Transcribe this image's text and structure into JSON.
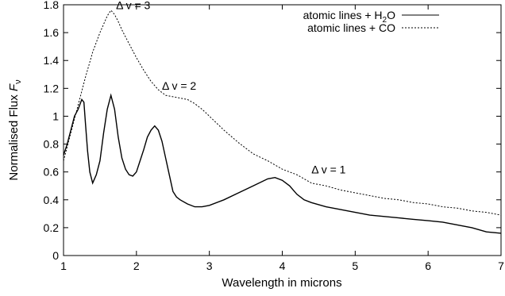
{
  "chart_data": {
    "type": "line",
    "title": "",
    "xlabel": "Wavelength in microns",
    "ylabel": "Normalised Flux",
    "ylabel_symbol": "F",
    "ylabel_subscript": "ν",
    "xlim": [
      1,
      7
    ],
    "ylim": [
      0,
      1.8
    ],
    "xticks": [
      "1",
      "2",
      "3",
      "4",
      "5",
      "6",
      "7"
    ],
    "yticks": [
      "0",
      "0.2",
      "0.4",
      "0.6",
      "0.8",
      "1",
      "1.2",
      "1.4",
      "1.6",
      "1.8"
    ],
    "grid": false,
    "legend_position": "top-right",
    "legend": {
      "h2o": {
        "prefix": "atomic lines + H",
        "subscript": "2",
        "suffix": "O"
      },
      "co": {
        "label": "atomic lines + CO"
      }
    },
    "annotations": [
      {
        "label": "Δ v = 3",
        "x": 1.72,
        "y": 1.77
      },
      {
        "label": "Δ v = 2",
        "x": 2.35,
        "y": 1.19
      },
      {
        "label": "Δ v = 1",
        "x": 4.4,
        "y": 0.59
      }
    ],
    "series": [
      {
        "key": "h2o",
        "style": "solid",
        "x": [
          1.0,
          1.05,
          1.1,
          1.15,
          1.2,
          1.25,
          1.28,
          1.3,
          1.33,
          1.36,
          1.4,
          1.45,
          1.5,
          1.55,
          1.6,
          1.65,
          1.7,
          1.75,
          1.8,
          1.85,
          1.9,
          1.95,
          2.0,
          2.05,
          2.1,
          2.15,
          2.2,
          2.25,
          2.3,
          2.35,
          2.4,
          2.45,
          2.5,
          2.55,
          2.6,
          2.7,
          2.8,
          2.9,
          3.0,
          3.2,
          3.4,
          3.6,
          3.8,
          3.9,
          4.0,
          4.1,
          4.2,
          4.3,
          4.4,
          4.6,
          4.8,
          5.0,
          5.2,
          5.4,
          5.6,
          5.8,
          6.0,
          6.2,
          6.4,
          6.6,
          6.8,
          7.0
        ],
        "y": [
          0.72,
          0.8,
          0.9,
          1.0,
          1.05,
          1.12,
          1.1,
          0.95,
          0.75,
          0.6,
          0.52,
          0.58,
          0.68,
          0.88,
          1.05,
          1.15,
          1.05,
          0.85,
          0.7,
          0.62,
          0.58,
          0.57,
          0.6,
          0.68,
          0.76,
          0.85,
          0.9,
          0.93,
          0.9,
          0.82,
          0.7,
          0.58,
          0.46,
          0.42,
          0.4,
          0.37,
          0.35,
          0.35,
          0.36,
          0.4,
          0.45,
          0.5,
          0.55,
          0.56,
          0.54,
          0.5,
          0.44,
          0.4,
          0.38,
          0.35,
          0.33,
          0.31,
          0.29,
          0.28,
          0.27,
          0.26,
          0.25,
          0.24,
          0.22,
          0.2,
          0.17,
          0.16
        ]
      },
      {
        "key": "co",
        "style": "dotted",
        "x": [
          1.0,
          1.1,
          1.2,
          1.3,
          1.4,
          1.5,
          1.6,
          1.65,
          1.7,
          1.75,
          1.8,
          1.9,
          2.0,
          2.1,
          2.2,
          2.3,
          2.4,
          2.5,
          2.6,
          2.7,
          2.8,
          2.9,
          3.0,
          3.2,
          3.4,
          3.6,
          3.8,
          4.0,
          4.2,
          4.3,
          4.4,
          4.6,
          4.8,
          5.0,
          5.2,
          5.4,
          5.6,
          5.8,
          6.0,
          6.2,
          6.4,
          6.6,
          6.8,
          7.0
        ],
        "y": [
          0.68,
          0.88,
          1.08,
          1.28,
          1.46,
          1.6,
          1.72,
          1.76,
          1.73,
          1.68,
          1.62,
          1.52,
          1.42,
          1.33,
          1.25,
          1.19,
          1.15,
          1.14,
          1.13,
          1.12,
          1.09,
          1.05,
          1.0,
          0.9,
          0.81,
          0.73,
          0.68,
          0.62,
          0.58,
          0.55,
          0.52,
          0.5,
          0.47,
          0.45,
          0.43,
          0.41,
          0.4,
          0.38,
          0.37,
          0.35,
          0.34,
          0.32,
          0.31,
          0.29
        ]
      }
    ]
  }
}
